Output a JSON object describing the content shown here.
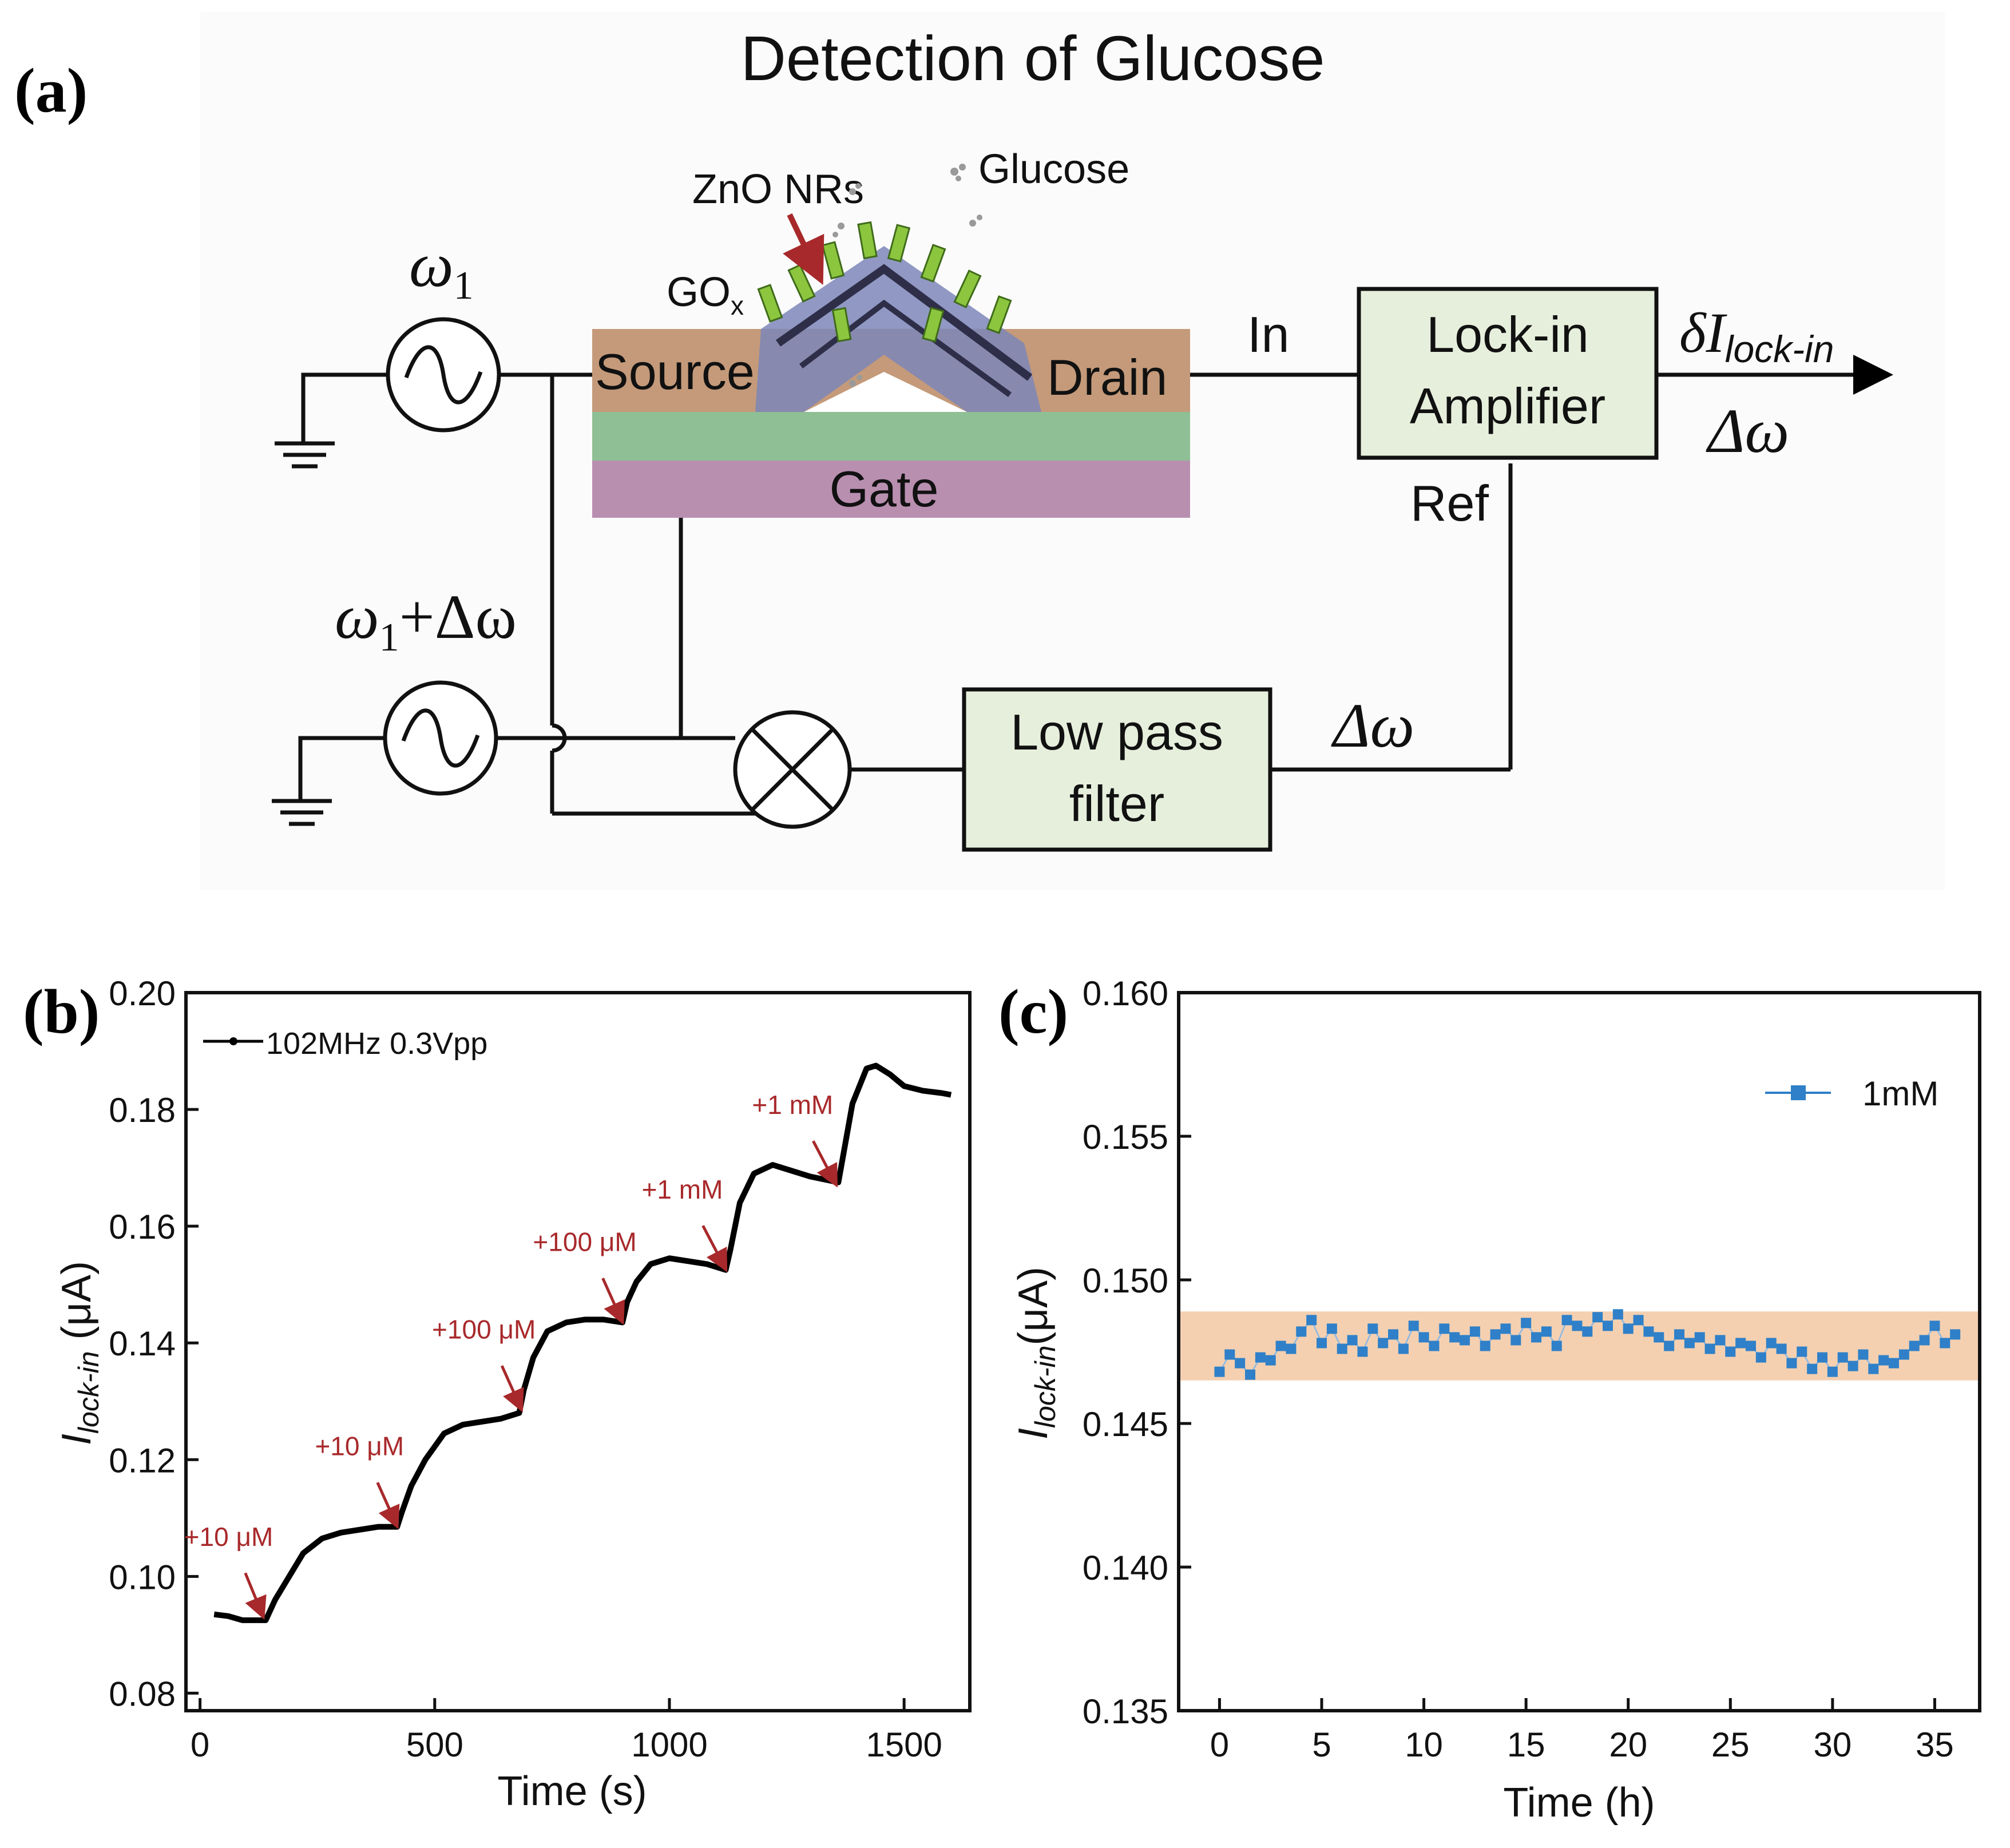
{
  "panel_a": {
    "label": "(a)",
    "title": "Detection of Glucose",
    "omega1": "ω",
    "omega1_sub": "1",
    "omega2_main": "ω",
    "omega2_sub": "1",
    "omega2_plus": "+Δω",
    "source": "Source",
    "drain": "Drain",
    "gate": "Gate",
    "zno": "ZnO NRs",
    "glucose": "Glucose",
    "gox": "GO",
    "gox_sub": "x",
    "in_label": "In",
    "ref_label": "Ref",
    "lockin_line1": "Lock-in",
    "lockin_line2": "Amplifier",
    "output_delta": "δI",
    "output_sub": "lock-in",
    "output_omega": "Δω",
    "lowpass_line1": "Low pass",
    "lowpass_line2": "filter",
    "filter_omega": "Δω",
    "colors": {
      "source_drain": "#c49a7a",
      "oxide": "#8fbf94",
      "gate": "#b98fb0",
      "box": "#e6efdc",
      "arrow": "#a8292b",
      "glucose": "#9a9a9a"
    }
  },
  "panel_b": {
    "label": "(b)",
    "ylabel_main": "I",
    "ylabel_sub": "lock-in",
    "ylabel_unit": " (μA)",
    "xlabel": "Time (s)",
    "legend": "102MHz 0.3Vpp",
    "annotations": [
      "+10 μM",
      "+10 μM",
      "+100 μM",
      "+100 μM",
      "+1 mM",
      "+1 mM"
    ]
  },
  "panel_c": {
    "label": "(c)",
    "ylabel_main": "I",
    "ylabel_sub": "lock-in",
    "ylabel_unit": "(μA)",
    "xlabel": "Time (h)",
    "legend": "1mM"
  },
  "chart_data": [
    {
      "type": "line",
      "id": "b",
      "title": "",
      "xlabel": "Time (s)",
      "ylabel": "I_lock-in (μA)",
      "xlim": [
        -30,
        1640
      ],
      "ylim": [
        0.077,
        0.2
      ],
      "xticks": [
        0,
        500,
        1000,
        1500
      ],
      "yticks": [
        0.08,
        0.1,
        0.12,
        0.14,
        0.16,
        0.18,
        0.2
      ],
      "xtick_labels": [
        "0",
        "500",
        "1000",
        "1500"
      ],
      "ytick_labels": [
        "0.08",
        "0.10",
        "0.12",
        "0.14",
        "0.16",
        "0.18",
        "0.20"
      ],
      "legend_position": "top-left",
      "series": [
        {
          "name": "102MHz 0.3Vpp",
          "color": "#000000",
          "x": [
            30,
            60,
            90,
            120,
            140,
            160,
            190,
            220,
            260,
            300,
            340,
            380,
            420,
            430,
            450,
            480,
            520,
            560,
            600,
            640,
            680,
            690,
            710,
            740,
            780,
            820,
            860,
            900,
            910,
            930,
            960,
            1000,
            1040,
            1080,
            1120,
            1130,
            1150,
            1180,
            1220,
            1260,
            1300,
            1360,
            1370,
            1390,
            1420,
            1440,
            1470,
            1500,
            1540,
            1580,
            1600
          ],
          "values": [
            0.0935,
            0.0932,
            0.0925,
            0.0925,
            0.0925,
            0.096,
            0.1,
            0.104,
            0.1065,
            0.1075,
            0.108,
            0.1085,
            0.1085,
            0.111,
            0.1155,
            0.12,
            0.1245,
            0.126,
            0.1265,
            0.127,
            0.128,
            0.132,
            0.1375,
            0.142,
            0.1435,
            0.144,
            0.144,
            0.1435,
            0.147,
            0.1505,
            0.1535,
            0.1545,
            0.154,
            0.1535,
            0.1525,
            0.156,
            0.164,
            0.169,
            0.1705,
            0.1695,
            0.1685,
            0.1675,
            0.172,
            0.181,
            0.187,
            0.1875,
            0.186,
            0.184,
            0.1832,
            0.1828,
            0.1825
          ]
        }
      ],
      "annotations": [
        {
          "text": "+10 μM",
          "x": 140,
          "y": 0.0925
        },
        {
          "text": "+10 μM",
          "x": 425,
          "y": 0.108
        },
        {
          "text": "+100 μM",
          "x": 690,
          "y": 0.128
        },
        {
          "text": "+100 μM",
          "x": 905,
          "y": 0.143
        },
        {
          "text": "+1 mM",
          "x": 1125,
          "y": 0.152
        },
        {
          "text": "+1 mM",
          "x": 1360,
          "y": 0.1665
        }
      ]
    },
    {
      "type": "scatter",
      "id": "c",
      "title": "",
      "xlabel": "Time (h)",
      "ylabel": "I_lock-in (μA)",
      "xlim": [
        -2,
        37.2
      ],
      "ylim": [
        0.135,
        0.16
      ],
      "xticks": [
        0,
        5,
        10,
        15,
        20,
        25,
        30,
        35
      ],
      "yticks": [
        0.135,
        0.14,
        0.145,
        0.15,
        0.155,
        0.16
      ],
      "xtick_labels": [
        "0",
        "5",
        "10",
        "15",
        "20",
        "25",
        "30",
        "35"
      ],
      "ytick_labels": [
        "0.135",
        "0.140",
        "0.145",
        "0.150",
        "0.155",
        "0.160"
      ],
      "legend_position": "top-right",
      "band": {
        "ymin": 0.1465,
        "ymax": 0.1489,
        "color": "#f3cba8"
      },
      "series": [
        {
          "name": "1mM",
          "color": "#2f80c8",
          "x": [
            0,
            0.5,
            1,
            1.5,
            2,
            2.5,
            3,
            3.5,
            4,
            4.5,
            5,
            5.5,
            6,
            6.5,
            7,
            7.5,
            8,
            8.5,
            9,
            9.5,
            10,
            10.5,
            11,
            11.5,
            12,
            12.5,
            13,
            13.5,
            14,
            14.5,
            15,
            15.5,
            16,
            16.5,
            17,
            17.5,
            18,
            18.5,
            19,
            19.5,
            20,
            20.5,
            21,
            21.5,
            22,
            22.5,
            23,
            23.5,
            24,
            24.5,
            25,
            25.5,
            26,
            26.5,
            27,
            27.5,
            28,
            28.5,
            29,
            29.5,
            30,
            30.5,
            31,
            31.5,
            32,
            32.5,
            33,
            33.5,
            34,
            34.5,
            35,
            35.5,
            36
          ],
          "values": [
            0.1468,
            0.1474,
            0.1471,
            0.1467,
            0.1473,
            0.1472,
            0.1477,
            0.1476,
            0.1482,
            0.1486,
            0.1478,
            0.1483,
            0.1476,
            0.1479,
            0.1475,
            0.1483,
            0.1478,
            0.1481,
            0.1476,
            0.1484,
            0.148,
            0.1477,
            0.1483,
            0.148,
            0.1479,
            0.1482,
            0.1477,
            0.1481,
            0.1483,
            0.1479,
            0.1485,
            0.148,
            0.1482,
            0.1477,
            0.1486,
            0.1484,
            0.1482,
            0.1487,
            0.1484,
            0.1488,
            0.1483,
            0.1486,
            0.1482,
            0.148,
            0.1477,
            0.1481,
            0.1478,
            0.148,
            0.1476,
            0.1479,
            0.1475,
            0.1478,
            0.1477,
            0.1473,
            0.1478,
            0.1476,
            0.1471,
            0.1475,
            0.1469,
            0.1473,
            0.1468,
            0.1473,
            0.147,
            0.1474,
            0.1469,
            0.1472,
            0.1471,
            0.1474,
            0.1477,
            0.1479,
            0.1484,
            0.1478,
            0.1481
          ]
        }
      ]
    }
  ]
}
